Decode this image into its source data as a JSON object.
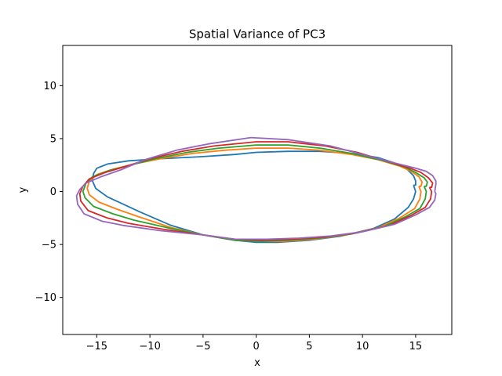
{
  "chart_data": {
    "type": "line",
    "title": "Spatial Variance of PC3",
    "xlabel": "x",
    "ylabel": "y",
    "xlim": [
      -18.2,
      18.4
    ],
    "ylim": [
      -13.5,
      13.8
    ],
    "xticks": [
      -15,
      -10,
      -5,
      0,
      5,
      10,
      15
    ],
    "yticks": [
      -10,
      -5,
      0,
      5,
      10
    ],
    "grid": false,
    "legend": "none",
    "series": [
      {
        "color": "#1f77b4",
        "x": [
          14.8,
          15.0,
          14.8,
          14.3,
          13.0,
          11.0,
          8.0,
          5.0,
          2.0,
          0.0,
          -2.0,
          -5.0,
          -8.0,
          -11.0,
          -12.5,
          -14.0,
          -15.1,
          -15.4,
          -15.3,
          -15.0,
          -14.0,
          -12.0,
          -9.0,
          -5.0,
          -2.0,
          0.0,
          3.0,
          6.0,
          9.0,
          11.5,
          13.0,
          14.2,
          14.8,
          15.0,
          15.0,
          14.8
        ],
        "y": [
          0.6,
          0.0,
          -0.7,
          -1.5,
          -2.6,
          -3.5,
          -4.2,
          -4.6,
          -4.8,
          -4.8,
          -4.6,
          -4.1,
          -3.2,
          -1.9,
          -1.2,
          -0.5,
          0.3,
          1.0,
          1.7,
          2.2,
          2.6,
          2.9,
          3.1,
          3.3,
          3.5,
          3.7,
          3.8,
          3.8,
          3.6,
          3.2,
          2.7,
          2.1,
          1.5,
          1.0,
          0.6,
          0.6
        ]
      },
      {
        "color": "#ff7f0e",
        "x": [
          15.3,
          15.5,
          15.4,
          14.9,
          13.5,
          11.5,
          8.5,
          5.5,
          2.5,
          0.5,
          -2.0,
          -5.0,
          -8.0,
          -11.0,
          -13.0,
          -14.8,
          -15.7,
          -15.9,
          -15.7,
          -15.0,
          -13.5,
          -11.5,
          -9.0,
          -6.0,
          -3.0,
          0.0,
          3.0,
          6.0,
          9.0,
          11.5,
          13.5,
          14.6,
          15.3,
          15.6,
          15.5,
          15.3
        ],
        "y": [
          0.5,
          0.0,
          -0.7,
          -1.6,
          -2.5,
          -3.4,
          -4.1,
          -4.5,
          -4.7,
          -4.7,
          -4.6,
          -4.1,
          -3.4,
          -2.4,
          -1.7,
          -1.0,
          -0.3,
          0.3,
          1.0,
          1.6,
          2.1,
          2.6,
          3.1,
          3.6,
          3.9,
          4.1,
          4.1,
          3.9,
          3.5,
          3.0,
          2.4,
          1.9,
          1.4,
          0.9,
          0.5,
          0.5
        ]
      },
      {
        "color": "#2ca02c",
        "x": [
          15.8,
          16.0,
          15.9,
          15.4,
          14.0,
          12.0,
          9.0,
          6.0,
          3.0,
          0.5,
          -2.0,
          -5.0,
          -8.0,
          -11.5,
          -13.5,
          -15.3,
          -16.1,
          -16.3,
          -16.0,
          -15.4,
          -13.8,
          -11.8,
          -9.5,
          -6.5,
          -3.5,
          0.0,
          3.0,
          6.0,
          9.0,
          12.0,
          14.0,
          15.0,
          15.8,
          16.1,
          16.0,
          15.8
        ],
        "y": [
          0.5,
          0.0,
          -0.7,
          -1.6,
          -2.4,
          -3.3,
          -4.0,
          -4.4,
          -4.6,
          -4.7,
          -4.6,
          -4.1,
          -3.5,
          -2.7,
          -2.1,
          -1.4,
          -0.6,
          0.0,
          0.8,
          1.4,
          2.0,
          2.5,
          3.1,
          3.7,
          4.1,
          4.4,
          4.4,
          4.1,
          3.6,
          2.9,
          2.3,
          1.8,
          1.3,
          0.9,
          0.5,
          0.5
        ]
      },
      {
        "color": "#d62728",
        "x": [
          16.3,
          16.5,
          16.4,
          15.9,
          14.5,
          12.5,
          9.5,
          6.5,
          3.5,
          0.5,
          -2.0,
          -5.0,
          -8.5,
          -12.0,
          -14.0,
          -15.8,
          -16.5,
          -16.6,
          -16.3,
          -15.7,
          -14.2,
          -12.2,
          -10.0,
          -7.0,
          -4.0,
          0.0,
          3.0,
          6.5,
          9.5,
          12.5,
          14.5,
          15.5,
          16.2,
          16.6,
          16.5,
          16.3
        ],
        "y": [
          0.4,
          0.0,
          -0.7,
          -1.5,
          -2.3,
          -3.2,
          -3.9,
          -4.3,
          -4.5,
          -4.6,
          -4.5,
          -4.1,
          -3.6,
          -3.0,
          -2.5,
          -1.8,
          -0.9,
          -0.2,
          0.5,
          1.2,
          1.8,
          2.4,
          3.1,
          3.8,
          4.3,
          4.7,
          4.7,
          4.3,
          3.7,
          2.8,
          2.2,
          1.8,
          1.3,
          0.8,
          0.4,
          0.4
        ]
      },
      {
        "color": "#9467bd",
        "x": [
          16.8,
          16.9,
          16.8,
          16.3,
          15.0,
          13.0,
          10.0,
          7.0,
          4.0,
          1.0,
          -2.0,
          -5.0,
          -9.0,
          -12.5,
          -14.5,
          -16.2,
          -16.8,
          -16.9,
          -16.6,
          -16.0,
          -14.6,
          -12.6,
          -10.5,
          -7.5,
          -4.5,
          -0.5,
          3.0,
          7.0,
          10.0,
          13.0,
          15.0,
          16.0,
          16.6,
          16.9,
          16.9,
          16.8
        ],
        "y": [
          0.0,
          -0.2,
          -0.8,
          -1.5,
          -2.2,
          -3.1,
          -3.8,
          -4.2,
          -4.4,
          -4.5,
          -4.5,
          -4.1,
          -3.7,
          -3.2,
          -2.8,
          -2.1,
          -1.2,
          -0.4,
          0.2,
          0.8,
          1.4,
          2.1,
          3.0,
          3.9,
          4.5,
          5.1,
          4.9,
          4.3,
          3.5,
          2.7,
          2.2,
          1.9,
          1.5,
          1.0,
          0.7,
          0.0
        ]
      }
    ]
  }
}
